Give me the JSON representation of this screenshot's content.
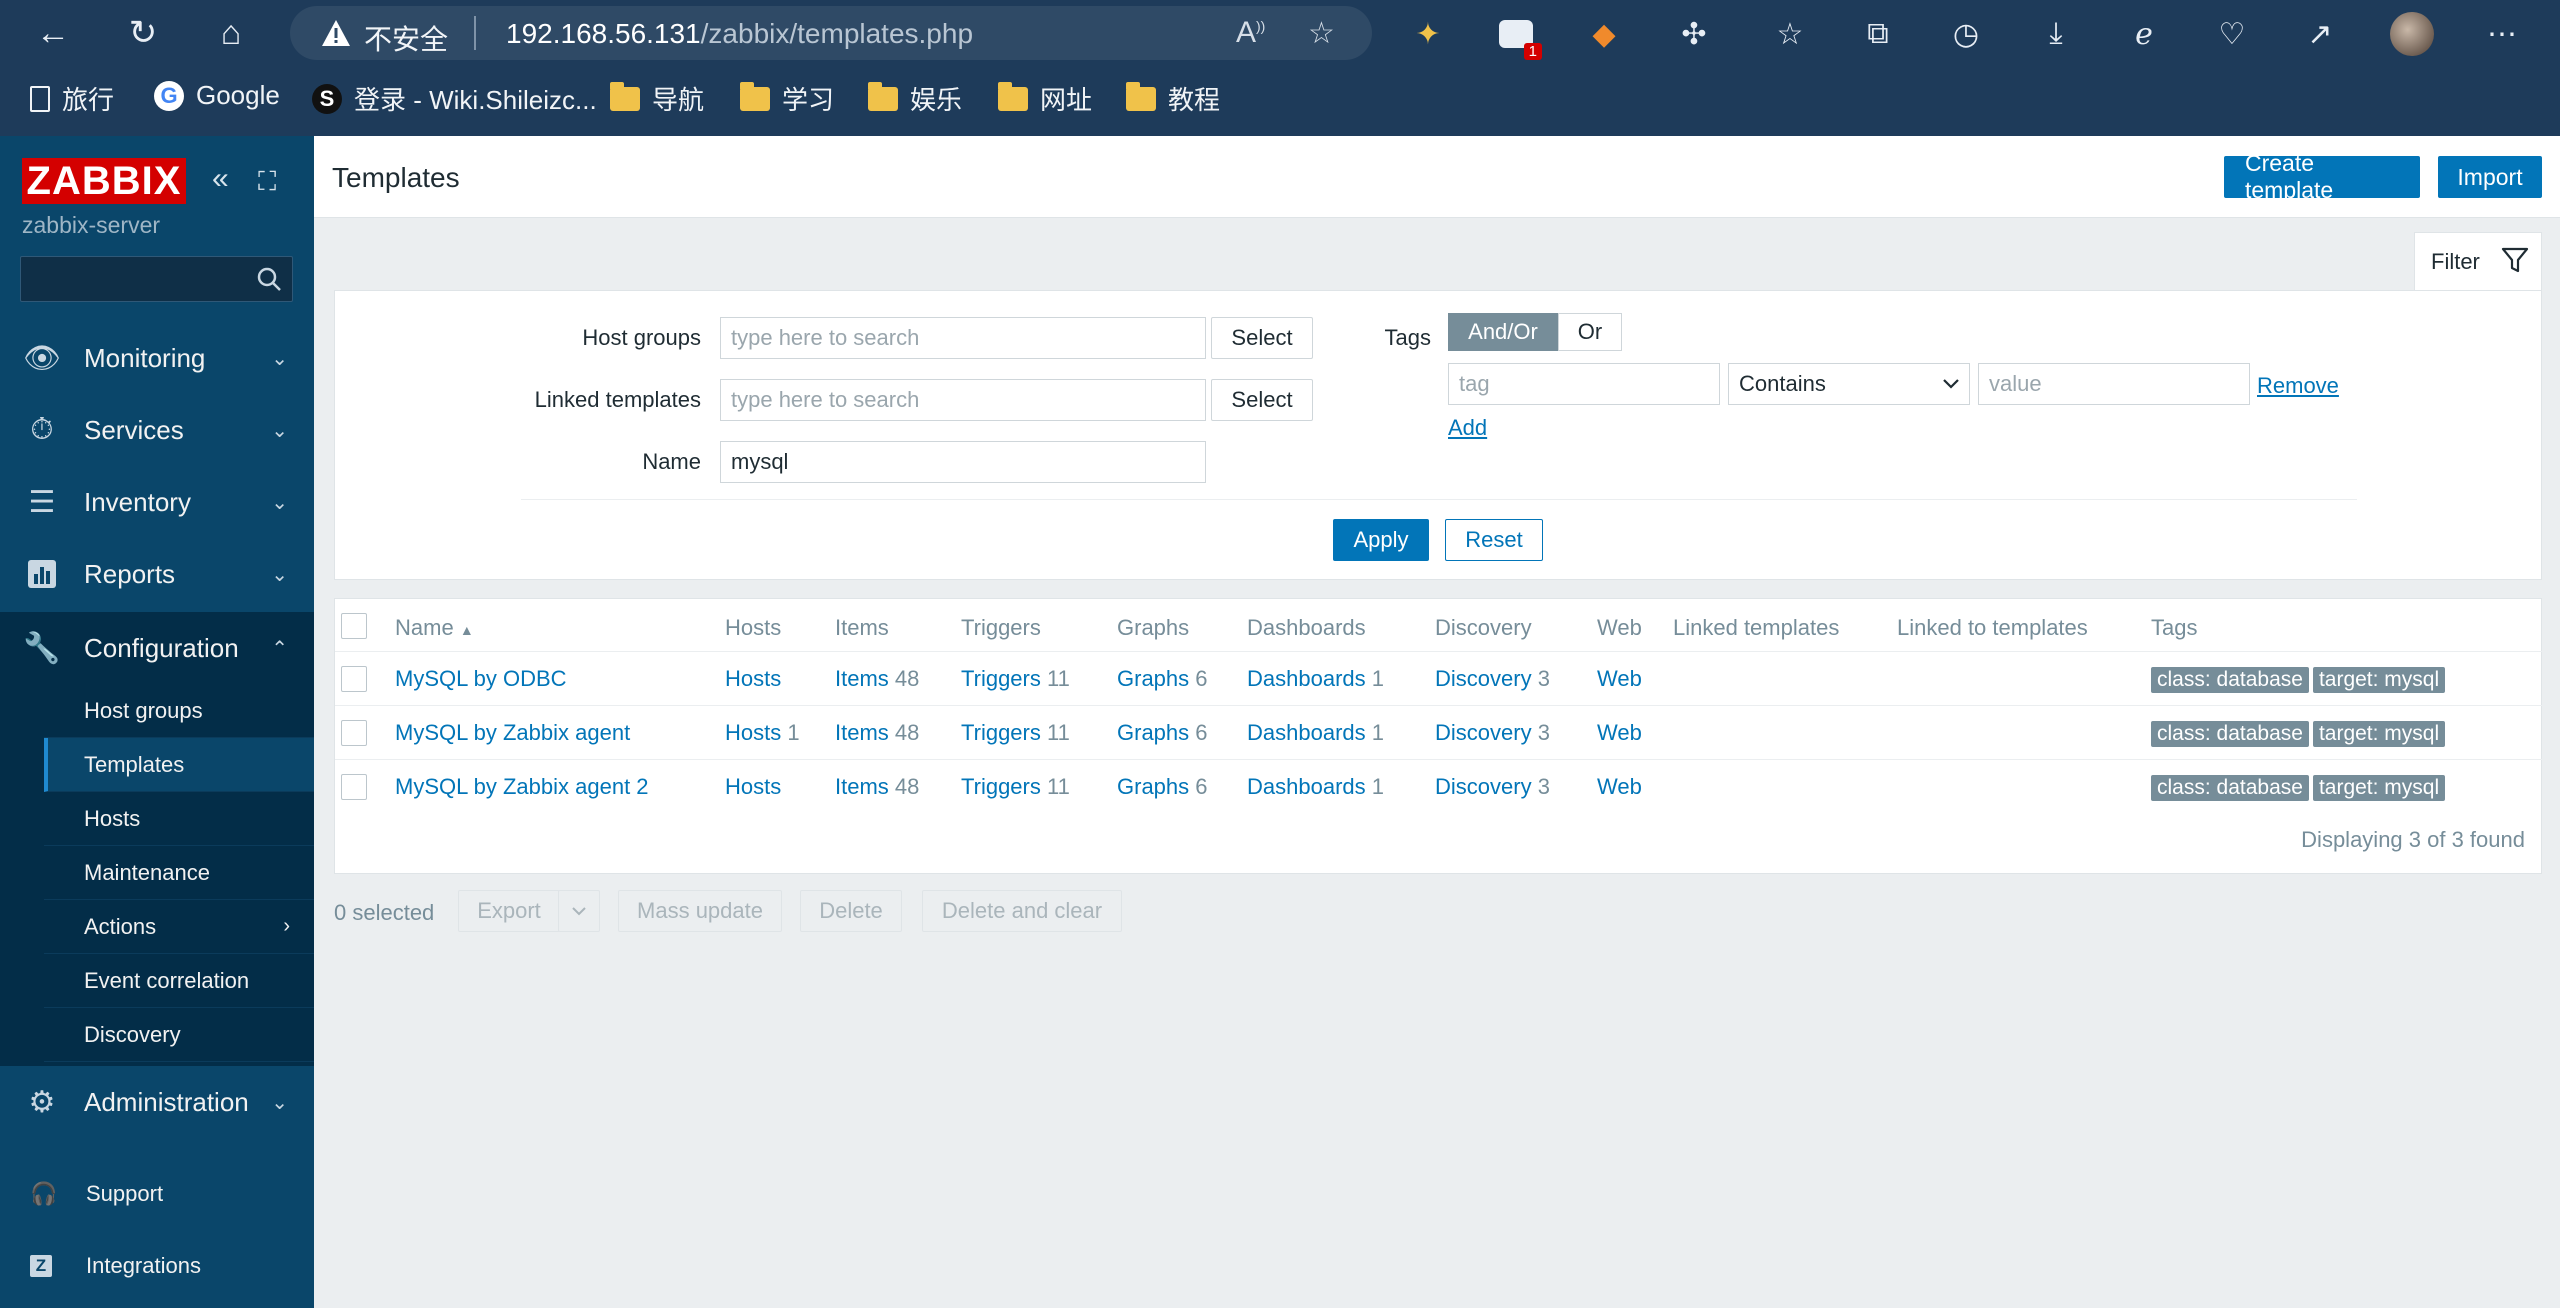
{
  "browser": {
    "security_label": "不安全",
    "url_host": "192.168.56.131",
    "url_path": "/zabbix/templates.php",
    "notification_count": "1",
    "bookmarks": [
      {
        "label": "旅行",
        "icon": "page-icon"
      },
      {
        "label": "Google",
        "icon": "google-icon"
      },
      {
        "label": "登录 - Wiki.Shileizc...",
        "icon": "s-logo-icon"
      },
      {
        "label": "导航",
        "icon": "folder-icon"
      },
      {
        "label": "学习",
        "icon": "folder-icon"
      },
      {
        "label": "娱乐",
        "icon": "folder-icon"
      },
      {
        "label": "网址",
        "icon": "folder-icon"
      },
      {
        "label": "教程",
        "icon": "folder-icon"
      }
    ]
  },
  "sidebar": {
    "logo": "ZABBIX",
    "server": "zabbix-server",
    "menu": [
      {
        "label": "Monitoring",
        "icon": "eye-icon",
        "chevron": "⌄"
      },
      {
        "label": "Services",
        "icon": "stopwatch-icon",
        "chevron": "⌄"
      },
      {
        "label": "Inventory",
        "icon": "list-icon",
        "chevron": "⌄"
      },
      {
        "label": "Reports",
        "icon": "chart-icon",
        "chevron": "⌄"
      },
      {
        "label": "Configuration",
        "icon": "wrench-icon",
        "chevron": "⌃"
      }
    ],
    "submenu": [
      {
        "label": "Host groups"
      },
      {
        "label": "Templates"
      },
      {
        "label": "Hosts"
      },
      {
        "label": "Maintenance"
      },
      {
        "label": "Actions",
        "chevron": "›"
      },
      {
        "label": "Event correlation"
      },
      {
        "label": "Discovery"
      }
    ],
    "admin": {
      "label": "Administration",
      "icon": "gear-icon",
      "chevron": "⌄"
    },
    "footer": [
      {
        "label": "Support",
        "icon": "headset-icon"
      },
      {
        "label": "Integrations",
        "icon": "z-icon"
      }
    ]
  },
  "header": {
    "title": "Templates",
    "create_label": "Create template",
    "import_label": "Import"
  },
  "filter": {
    "tab_label": "Filter",
    "host_groups_label": "Host groups",
    "linked_templates_label": "Linked templates",
    "name_label": "Name",
    "search_placeholder": "type here to search",
    "select_label": "Select",
    "name_value": "mysql",
    "tags_label": "Tags",
    "andor_label": "And/Or",
    "or_label": "Or",
    "tag_placeholder": "tag",
    "operator_value": "Contains",
    "value_placeholder": "value",
    "remove_label": "Remove",
    "add_label": "Add",
    "apply_label": "Apply",
    "reset_label": "Reset"
  },
  "table": {
    "columns": {
      "name": "Name",
      "hosts": "Hosts",
      "items": "Items",
      "triggers": "Triggers",
      "graphs": "Graphs",
      "dashboards": "Dashboards",
      "discovery": "Discovery",
      "web": "Web",
      "linked_templates": "Linked templates",
      "linked_to_templates": "Linked to templates",
      "tags": "Tags"
    },
    "rows": [
      {
        "name": "MySQL by ODBC",
        "hosts": "Hosts",
        "hosts_count": "",
        "items": "Items",
        "items_count": "48",
        "triggers": "Triggers",
        "triggers_count": "11",
        "graphs": "Graphs",
        "graphs_count": "6",
        "dashboards": "Dashboards",
        "dashboards_count": "1",
        "discovery": "Discovery",
        "discovery_count": "3",
        "web": "Web",
        "tag1": "class: database",
        "tag2": "target: mysql"
      },
      {
        "name": "MySQL by Zabbix agent",
        "hosts": "Hosts",
        "hosts_count": "1",
        "items": "Items",
        "items_count": "48",
        "triggers": "Triggers",
        "triggers_count": "11",
        "graphs": "Graphs",
        "graphs_count": "6",
        "dashboards": "Dashboards",
        "dashboards_count": "1",
        "discovery": "Discovery",
        "discovery_count": "3",
        "web": "Web",
        "tag1": "class: database",
        "tag2": "target: mysql"
      },
      {
        "name": "MySQL by Zabbix agent 2",
        "hosts": "Hosts",
        "hosts_count": "",
        "items": "Items",
        "items_count": "48",
        "triggers": "Triggers",
        "triggers_count": "11",
        "graphs": "Graphs",
        "graphs_count": "6",
        "dashboards": "Dashboards",
        "dashboards_count": "1",
        "discovery": "Discovery",
        "discovery_count": "3",
        "web": "Web",
        "tag1": "class: database",
        "tag2": "target: mysql"
      }
    ],
    "displaying": "Displaying 3 of 3 found"
  },
  "bottom": {
    "selected": "0 selected",
    "export_label": "Export",
    "mass_update_label": "Mass update",
    "delete_label": "Delete",
    "delete_clear_label": "Delete and clear"
  },
  "colors": {
    "sidebar_bg": "#0a466a",
    "sidebar_active": "#032d48",
    "primary": "#0275b8",
    "tag_bg": "#768d99",
    "logo_red": "#d40000"
  }
}
